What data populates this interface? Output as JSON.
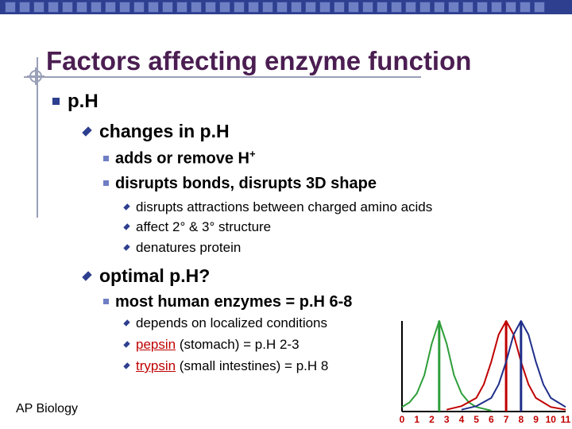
{
  "slide": {
    "title": "Factors affecting enzyme function",
    "bullets": {
      "ph": "p.H",
      "changes": "changes in p.H",
      "adds": "adds or remove H",
      "adds_sup": "+",
      "disrupts_bonds": "disrupts bonds, disrupts 3D shape",
      "disrupts_attractions": "disrupts attractions between charged amino acids",
      "affect_structure": "affect 2° & 3° structure",
      "denatures": "denatures protein",
      "optimal": "optimal p.H?",
      "most_human": "most human enzymes = p.H 6-8",
      "depends": "depends on localized conditions",
      "pepsin_name": "pepsin",
      "pepsin_rest": " (stomach) = p.H 2-3",
      "trypsin_name": "trypsin",
      "trypsin_rest": " (small intestines) = p.H 8"
    },
    "footer": "AP Biology"
  },
  "colors": {
    "title": "#4b1e52",
    "accent": "#2e3f8f",
    "pepsin_curve": "#2e9e3a",
    "human_curve": "#c00000",
    "trypsin_curve": "#1f2e8a",
    "axis_labels": "#c00000"
  },
  "chart_data": {
    "type": "line",
    "x_ticks": [
      "0",
      "1",
      "2",
      "3",
      "4",
      "5",
      "6",
      "7",
      "8",
      "9",
      "10",
      "11"
    ],
    "xlim": [
      0,
      11
    ],
    "ylim": [
      0,
      1
    ],
    "grid": false,
    "series": [
      {
        "peak": 2.5,
        "color": "#2e9e3a",
        "x": [
          0,
          0.5,
          1,
          1.5,
          2,
          2.5,
          3,
          3.5,
          4,
          4.5,
          5,
          6
        ],
        "y": [
          0.05,
          0.1,
          0.2,
          0.4,
          0.75,
          1.0,
          0.75,
          0.4,
          0.2,
          0.1,
          0.05,
          0.01
        ]
      },
      {
        "peak": 7,
        "color": "#c00000",
        "x": [
          3,
          4,
          5,
          5.5,
          6,
          6.5,
          7,
          7.5,
          8,
          8.5,
          9,
          10,
          11
        ],
        "y": [
          0.02,
          0.06,
          0.15,
          0.3,
          0.55,
          0.85,
          1.0,
          0.85,
          0.55,
          0.3,
          0.15,
          0.05,
          0.02
        ]
      },
      {
        "peak": 8,
        "color": "#1f2e8a",
        "x": [
          4,
          5,
          6,
          6.5,
          7,
          7.5,
          8,
          8.5,
          9,
          9.5,
          10,
          11
        ],
        "y": [
          0.02,
          0.06,
          0.15,
          0.3,
          0.55,
          0.85,
          1.0,
          0.85,
          0.55,
          0.3,
          0.15,
          0.05
        ]
      }
    ]
  }
}
